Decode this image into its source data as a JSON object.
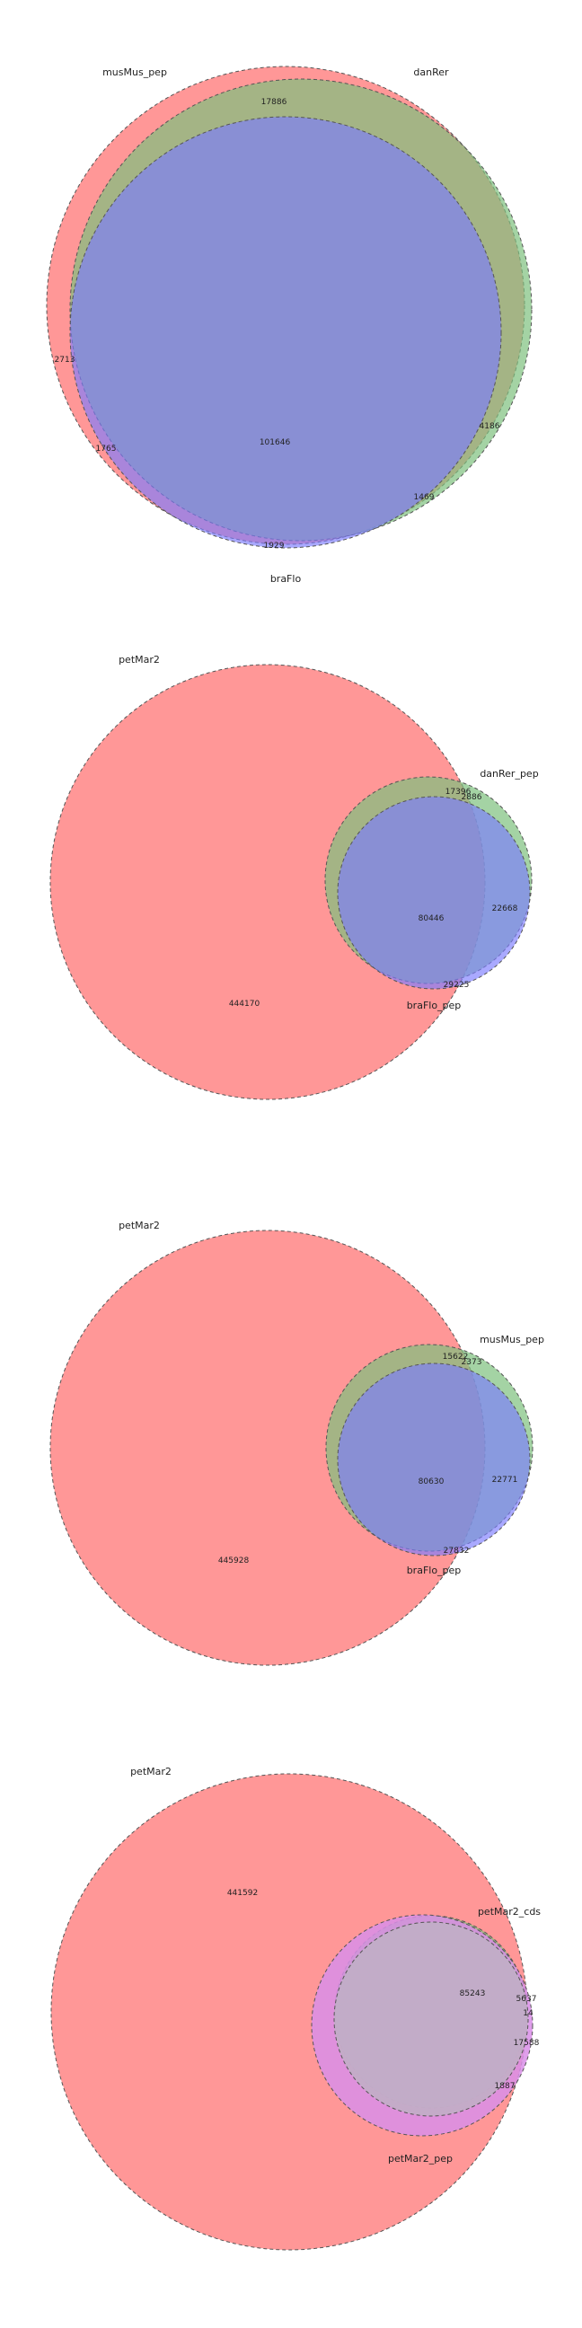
{
  "colors": {
    "red": "#ff6b6b",
    "green": "#7ec17e",
    "blue": "#7b7bff",
    "red_overlap": "#e0b896",
    "stroke": "#555555",
    "background": "#ffffff"
  },
  "diagrams": [
    {
      "sets": [
        "musMus_pep",
        "danRer",
        "braFlo"
      ],
      "counts": [
        "17886",
        "2713",
        "4186",
        "1469",
        "1765",
        "1929",
        "101646"
      ]
    },
    {
      "sets": [
        "petMar2",
        "danRer_pep",
        "braFlo_pep"
      ],
      "counts": [
        "17396",
        "2886",
        "22668",
        "80446",
        "29225",
        "444170"
      ]
    },
    {
      "sets": [
        "petMar2",
        "musMus_pep",
        "braFlo_pep"
      ],
      "counts": [
        "15622",
        "2373",
        "22771",
        "80630",
        "27832",
        "445928"
      ]
    },
    {
      "sets": [
        "petMar2",
        "petMar2_cds",
        "petMar2_pep"
      ],
      "counts": [
        "441592",
        "85243",
        "5637",
        "14",
        "17588",
        "1887"
      ]
    }
  ]
}
